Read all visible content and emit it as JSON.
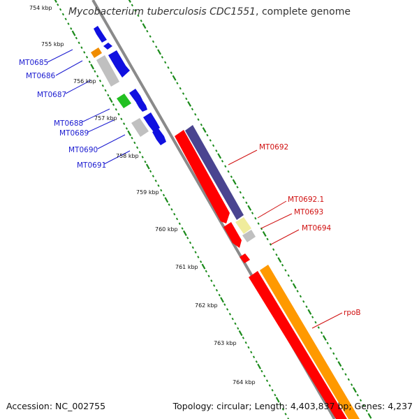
{
  "title": {
    "organism": "Mycobacterium tuberculosis CDC1551",
    "suffix": ", complete genome"
  },
  "footer": {
    "accession": "Accession: NC_002755",
    "summary": "Topology: circular; Length: 4,403,837 bp; Genes: 4,237"
  },
  "colors": {
    "backbone": "#8a8a8a",
    "ruler": "#1a8a1a",
    "forward_gene": "#1010e0",
    "gray_gene": "#c0c0c0",
    "orange_gene": "#f08c00",
    "green_gene": "#22c022",
    "red_gene": "#ff0000",
    "navy_gene": "#4a4490",
    "yellow_gene": "#f0ec9c",
    "rpoB": "#ff9900",
    "left_labels": "#1a1ad0",
    "right_labels": "#d01010"
  },
  "ruler_labels": [
    "754 kbp",
    "755 kbp",
    "756 kbp",
    "757 kbp",
    "758 kbp",
    "759 kbp",
    "760 kbp",
    "761 kbp",
    "762 kbp",
    "763 kbp",
    "764 kbp"
  ],
  "left_genes": [
    "MT0685",
    "MT0686",
    "MT0687",
    "MT0688",
    "MT0689",
    "MT0690",
    "MT0691"
  ],
  "right_genes": [
    "MT0692",
    "MT0692.1",
    "MT0693",
    "MT0694",
    "rpoB"
  ]
}
